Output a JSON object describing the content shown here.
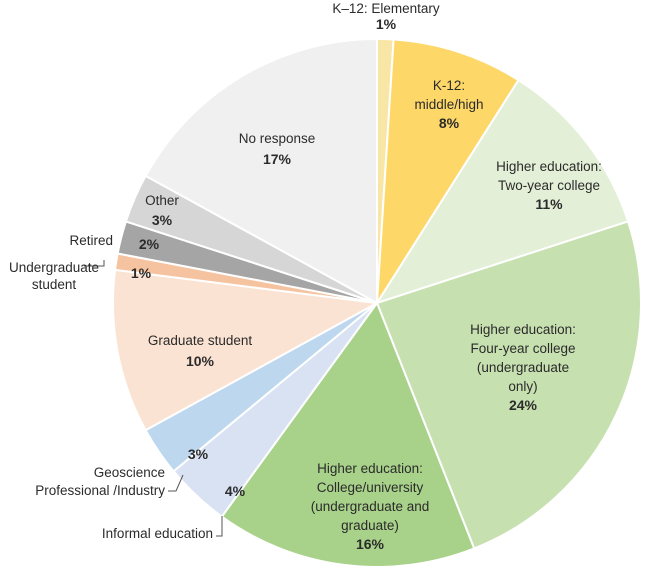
{
  "chart_data": {
    "type": "pie",
    "title": "",
    "start_angle_deg": 0,
    "direction": "clockwise",
    "slices": [
      {
        "label": "K–12: Elementary",
        "value": 1,
        "display": "1%",
        "color": "#f7e6a6"
      },
      {
        "label": "K-12: middle/high",
        "value": 8,
        "display": "8%",
        "color": "#fdd768"
      },
      {
        "label": "Higher education: Two-year college",
        "value": 11,
        "display": "11%",
        "color": "#e3efd6"
      },
      {
        "label": "Higher education: Four-year college (undergraduate only)",
        "value": 24,
        "display": "24%",
        "color": "#c7e0b0"
      },
      {
        "label": "Higher education: College/university (undergraduate and graduate)",
        "value": 16,
        "display": "16%",
        "color": "#a8d18a"
      },
      {
        "label": "Informal education",
        "value": 4,
        "display": "4%",
        "color": "#d9e2f3"
      },
      {
        "label": "Geoscience Professional /Industry",
        "value": 3,
        "display": "3%",
        "color": "#bdd7ee"
      },
      {
        "label": "Graduate student",
        "value": 10,
        "display": "10%",
        "color": "#fbe3d3"
      },
      {
        "label": "Undergraduate student",
        "value": 1,
        "display": "1%",
        "color": "#f6c3a0"
      },
      {
        "label": "Retired",
        "value": 2,
        "display": "2%",
        "color": "#a5a5a5"
      },
      {
        "label": "Other",
        "value": 3,
        "display": "3%",
        "color": "#d6d6d6"
      },
      {
        "label": "No response",
        "value": 17,
        "display": "17%",
        "color": "#f0f0f0"
      }
    ]
  },
  "labels": [
    {
      "lines": [
        "K–12: Elementary"
      ],
      "pct": "1%"
    },
    {
      "lines": [
        "K-12:",
        "middle/high"
      ],
      "pct": "8%"
    },
    {
      "lines": [
        "Higher education:",
        "Two-year college"
      ],
      "pct": "11%"
    },
    {
      "lines": [
        "Higher education:",
        "Four-year college",
        "(undergraduate",
        "only)"
      ],
      "pct": "24%"
    },
    {
      "lines": [
        "Higher education:",
        "College/university",
        "(undergraduate and",
        "graduate)"
      ],
      "pct": "16%"
    },
    {
      "lines": [
        "Informal education"
      ],
      "pct": "4%"
    },
    {
      "lines": [
        "Geoscience",
        "Professional /Industry"
      ],
      "pct": "3%"
    },
    {
      "lines": [
        "Graduate student"
      ],
      "pct": "10%"
    },
    {
      "lines": [
        "Undergraduate",
        "student"
      ],
      "pct": "1%"
    },
    {
      "lines": [
        "Retired"
      ],
      "pct": "2%"
    },
    {
      "lines": [
        "Other"
      ],
      "pct": "3%"
    },
    {
      "lines": [
        "No response"
      ],
      "pct": "17%"
    }
  ]
}
